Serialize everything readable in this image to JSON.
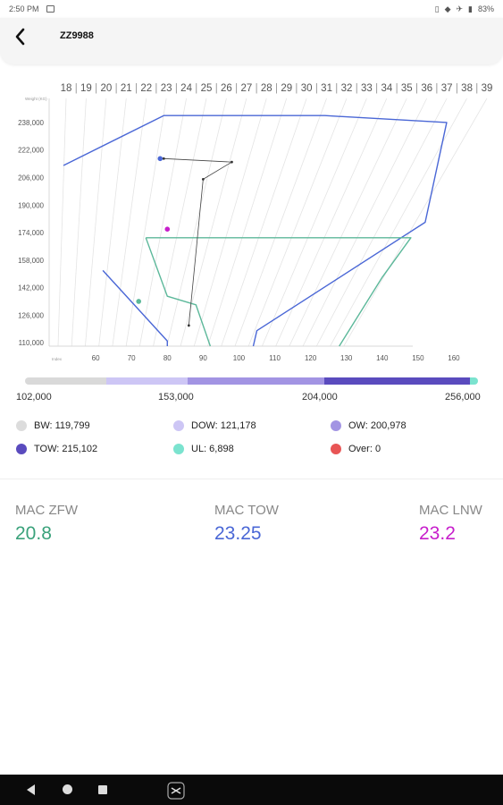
{
  "status_bar": {
    "time": "2:50 PM",
    "battery": "83%"
  },
  "header": {
    "title": "ZZ9988"
  },
  "chart_data": {
    "type": "scatter",
    "title": "",
    "y_axis_title": "Weight (KG)",
    "x_axis_title": "Index",
    "mac_scale_labels": [
      "18",
      "19",
      "20",
      "21",
      "22",
      "23",
      "24",
      "25",
      "26",
      "27",
      "28",
      "29",
      "30",
      "31",
      "32",
      "33",
      "34",
      "35",
      "36",
      "37",
      "38",
      "39"
    ],
    "x_ticks": [
      60,
      70,
      80,
      90,
      100,
      110,
      120,
      130,
      140,
      150,
      160
    ],
    "y_ticks": [
      110000,
      126000,
      142000,
      158000,
      174000,
      190000,
      206000,
      222000,
      238000
    ],
    "y_tick_labels": [
      "110,000",
      "126,000",
      "142,000",
      "158,000",
      "174,000",
      "190,000",
      "206,000",
      "222,000",
      "238,000"
    ],
    "xlim": [
      47,
      163
    ],
    "ylim": [
      108000,
      252000
    ],
    "envelopes": [
      {
        "color": "#4a67d6",
        "points": [
          [
            51,
            213000
          ],
          [
            79,
            242000
          ],
          [
            124,
            242000
          ],
          [
            158,
            238000
          ],
          [
            152,
            180000
          ],
          [
            105,
            117000
          ],
          [
            104,
            108000
          ]
        ]
      },
      {
        "color": "#4a67d6",
        "points": [
          [
            62,
            152000
          ],
          [
            80,
            111000
          ],
          [
            80,
            108000
          ]
        ]
      },
      {
        "color": "#5cb89a",
        "points": [
          [
            74,
            171000
          ],
          [
            148,
            171000
          ],
          [
            140,
            148000
          ],
          [
            128,
            108000
          ]
        ]
      },
      {
        "color": "#5cb89a",
        "points": [
          [
            74,
            171000
          ],
          [
            80,
            137000
          ],
          [
            88,
            132000
          ],
          [
            92,
            108000
          ]
        ]
      }
    ],
    "trim_path": [
      [
        79,
        217000
      ],
      [
        98,
        215000
      ],
      [
        90,
        205000
      ],
      [
        86,
        120000
      ]
    ],
    "points": [
      {
        "name": "TOW",
        "x": 78,
        "y": 217000,
        "color": "#4a67d6"
      },
      {
        "name": "ZFW",
        "x": 72,
        "y": 134000,
        "color": "#5cb89a"
      },
      {
        "name": "LNW",
        "x": 80,
        "y": 176000,
        "color": "#c71ecb"
      }
    ]
  },
  "weight_bar": {
    "ticks": [
      "102,000",
      "153,000",
      "204,000",
      "256,000"
    ],
    "segments": [
      {
        "name": "BW",
        "color": "#d9d9d9",
        "fraction": 0.179
      },
      {
        "name": "DOW",
        "color": "#cdc6f5",
        "fraction": 0.18
      },
      {
        "name": "OW",
        "color": "#a294e3",
        "fraction": 0.301
      },
      {
        "name": "TOW",
        "color": "#5a4bbe",
        "fraction": 0.322
      },
      {
        "name": "UL",
        "color": "#7be3cf",
        "fraction": 0.018
      }
    ]
  },
  "legend": [
    {
      "label": "BW: 119,799",
      "color": "#dcdcdc"
    },
    {
      "label": "DOW: 121,178",
      "color": "#cdc6f5"
    },
    {
      "label": "OW: 200,978",
      "color": "#a294e3"
    },
    {
      "label": "TOW: 215,102",
      "color": "#5a4bbe"
    },
    {
      "label": "UL: 6,898",
      "color": "#7be3cf"
    },
    {
      "label": "Over: 0",
      "color": "#e85555"
    }
  ],
  "mac": [
    {
      "label": "MAC ZFW",
      "value": "20.8",
      "color": "#3aa27b"
    },
    {
      "label": "MAC TOW",
      "value": "23.25",
      "color": "#4a67d6"
    },
    {
      "label": "MAC LNW",
      "value": "23.2",
      "color": "#c71ecb"
    }
  ]
}
